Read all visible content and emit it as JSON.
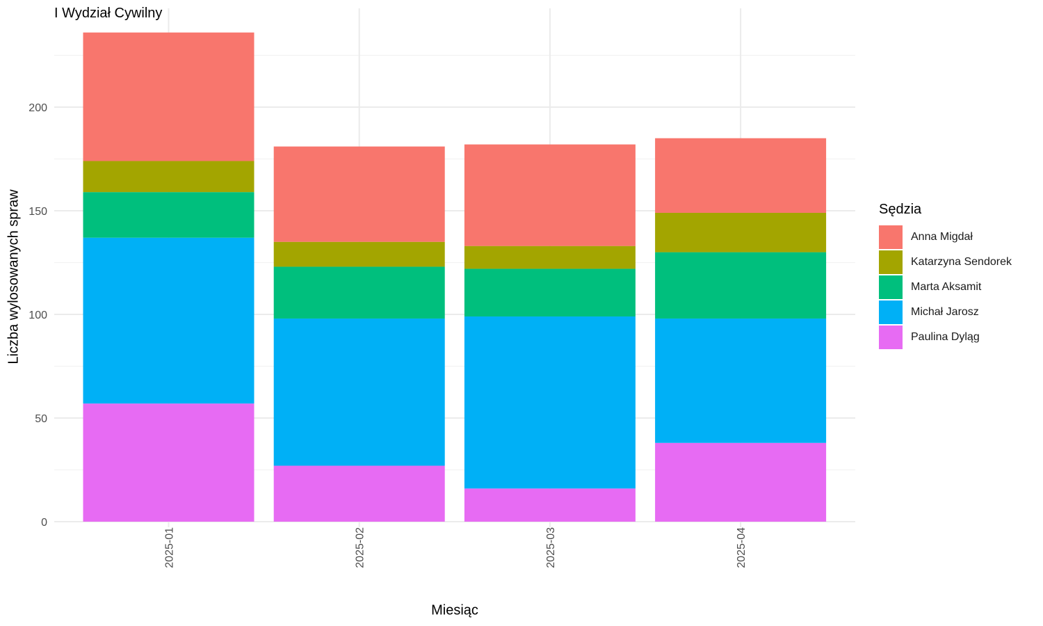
{
  "chart_data": {
    "type": "bar",
    "stacked": true,
    "title": "I Wydział Cywilny",
    "xlabel": "Miesiąc",
    "ylabel": "Liczba wylosowanych spraw",
    "categories": [
      "2025-01",
      "2025-02",
      "2025-03",
      "2025-04"
    ],
    "ylim": [
      0,
      248
    ],
    "yticks": [
      0,
      50,
      100,
      150,
      200
    ],
    "grid": true,
    "legend": {
      "title": "Sędzia",
      "placement": "right"
    },
    "series": [
      {
        "name": "Anna Migdał",
        "color": "#F8766D",
        "values": [
          62,
          46,
          49,
          36
        ]
      },
      {
        "name": "Katarzyna Sendorek",
        "color": "#A3A500",
        "values": [
          15,
          12,
          11,
          19
        ]
      },
      {
        "name": "Marta Aksamit",
        "color": "#00BF7D",
        "values": [
          22,
          25,
          23,
          32
        ]
      },
      {
        "name": "Michał Jarosz",
        "color": "#00B0F6",
        "values": [
          80,
          71,
          83,
          60
        ]
      },
      {
        "name": "Paulina Dyląg",
        "color": "#E76BF3",
        "values": [
          57,
          27,
          16,
          38
        ]
      }
    ]
  }
}
